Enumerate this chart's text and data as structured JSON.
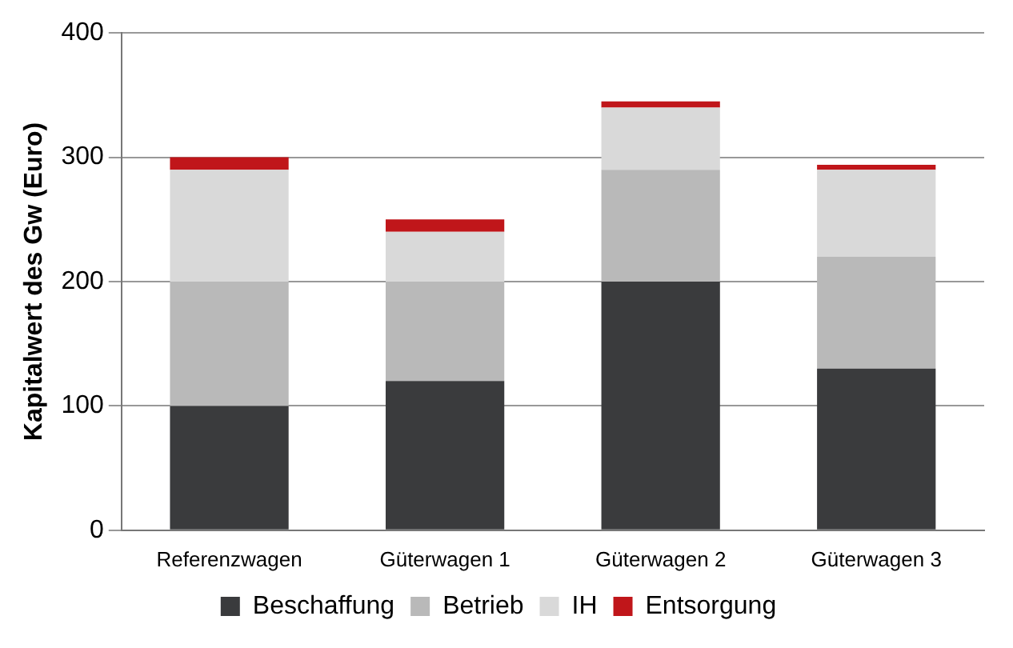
{
  "chart_data": {
    "type": "bar",
    "stacked": true,
    "ylabel": "Kapitalwert des Gw (Euro)",
    "categories": [
      "Referenzwagen",
      "Güterwagen 1",
      "Güterwagen 2",
      "Güterwagen 3"
    ],
    "series": [
      {
        "name": "Beschaffung",
        "color": "#3a3b3d",
        "values": [
          100,
          120,
          200,
          130
        ]
      },
      {
        "name": "Betrieb",
        "color": "#b9b9b9",
        "values": [
          100,
          80,
          90,
          90
        ]
      },
      {
        "name": "IH",
        "color": "#d9d9d9",
        "values": [
          90,
          40,
          50,
          70
        ]
      },
      {
        "name": "Entsorgung",
        "color": "#c0161a",
        "values": [
          10,
          10,
          5,
          4
        ]
      }
    ],
    "ylim": [
      0,
      400
    ],
    "yticks": [
      0,
      100,
      200,
      300,
      400
    ],
    "grid": "y",
    "legend": "bottom"
  }
}
